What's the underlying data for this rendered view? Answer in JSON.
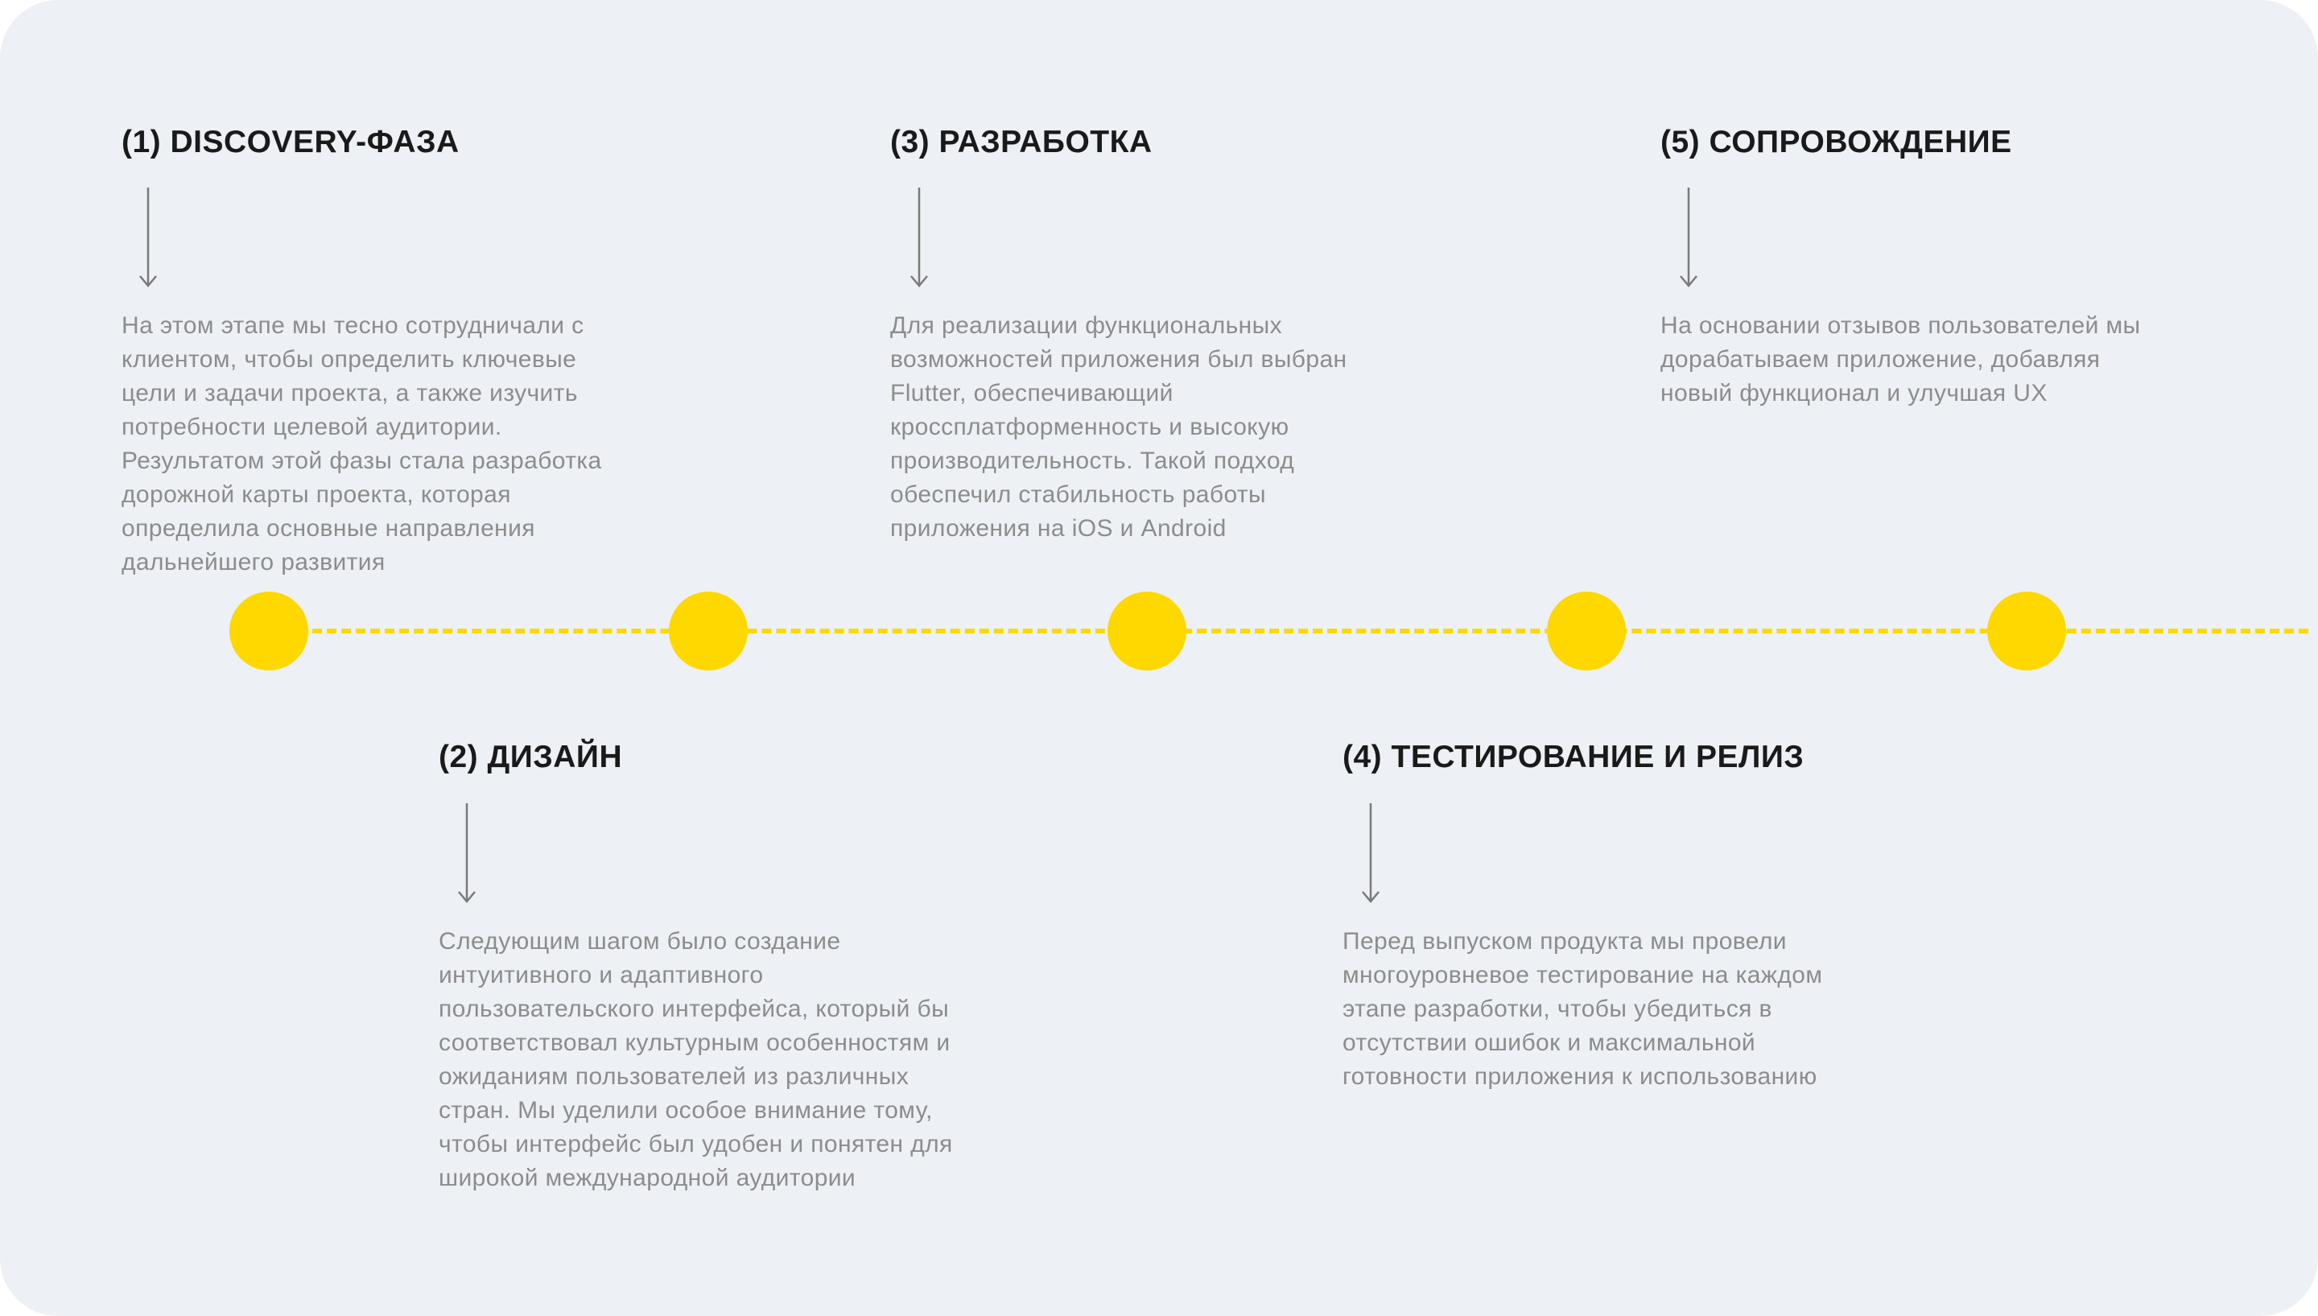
{
  "colors": {
    "background": "#edf0f5",
    "accent": "#ffd800",
    "title": "#1b1a1a",
    "body": "#8c8c8c",
    "arrow": "#7a7a7a"
  },
  "stages": [
    {
      "title": "(1) DISCOVERY-ФАЗА",
      "icon": "arrow-down-icon",
      "lines": [
        "На этом этапе мы тесно сотрудничали с",
        "клиентом, чтобы определить ключевые",
        "цели и задачи проекта, а также изучить",
        "потребности целевой аудитории.",
        "Результатом этой фазы стала разработка",
        "дорожной карты проекта, которая",
        "определила основные направления",
        "дальнейшего развития"
      ]
    },
    {
      "title": "(2) ДИЗАЙН",
      "icon": "arrow-down-icon",
      "lines": [
        "Следующим шагом было создание",
        "интуитивного и адаптивного",
        "пользовательского интерфейса, который бы",
        "соответствовал культурным особенностям и",
        "ожиданиям пользователей из различных",
        "стран. Мы уделили особое внимание тому,",
        "чтобы интерфейс был удобен и понятен для",
        "широкой международной аудитории"
      ]
    },
    {
      "title": "(3) РАЗРАБОТКА",
      "icon": "arrow-down-icon",
      "lines": [
        "Для реализации функциональных",
        "возможностей приложения был выбран",
        "Flutter, обеспечивающий",
        "кроссплатформенность и высокую",
        "производительность. Такой подход",
        "обеспечил стабильность работы",
        "приложения на iOS и Android"
      ]
    },
    {
      "title": "(4) ТЕСТИРОВАНИЕ И РЕЛИЗ",
      "icon": "arrow-down-icon",
      "lines": [
        "Перед выпуском продукта мы провели",
        "многоуровневое тестирование на каждом",
        "этапе разработки, чтобы убедиться в",
        "отсутствии ошибок и максимальной",
        "готовности приложения к использованию"
      ]
    },
    {
      "title": "(5) СОПРОВОЖДЕНИЕ",
      "icon": "arrow-down-icon",
      "lines": [
        "На основании отзывов пользователей мы",
        "дорабатываем приложение, добавляя",
        "новый функционал и улучшая UX"
      ]
    }
  ]
}
